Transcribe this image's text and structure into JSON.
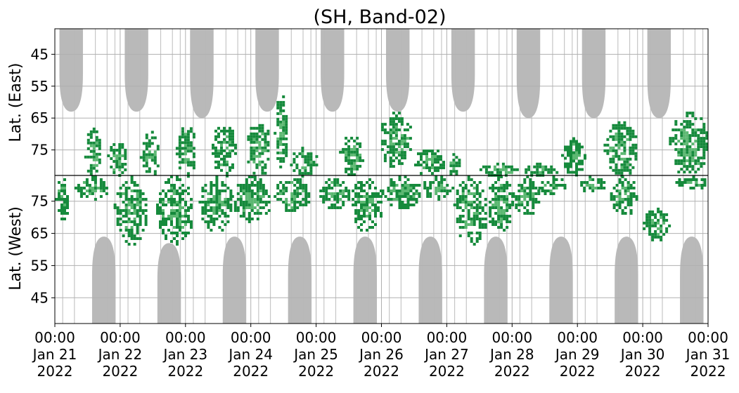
{
  "chart_data": {
    "type": "heatmap",
    "title": "(SH, Band-02)",
    "ylabel_top": "Lat. (East)",
    "ylabel_bottom": "Lat. (West)",
    "grid": true,
    "colors": {
      "gray_mask": "#b9b9b9",
      "green_dark": "#168a3c",
      "green_light": "#5cb872",
      "grid": "#b0b0b0",
      "axis": "#000000"
    },
    "x_ticks": [
      {
        "time": "00:00",
        "date": "Jan 21",
        "year": "2022"
      },
      {
        "time": "00:00",
        "date": "Jan 22",
        "year": "2022"
      },
      {
        "time": "00:00",
        "date": "Jan 23",
        "year": "2022"
      },
      {
        "time": "00:00",
        "date": "Jan 24",
        "year": "2022"
      },
      {
        "time": "00:00",
        "date": "Jan 25",
        "year": "2022"
      },
      {
        "time": "00:00",
        "date": "Jan 26",
        "year": "2022"
      },
      {
        "time": "00:00",
        "date": "Jan 27",
        "year": "2022"
      },
      {
        "time": "00:00",
        "date": "Jan 28",
        "year": "2022"
      },
      {
        "time": "00:00",
        "date": "Jan 29",
        "year": "2022"
      },
      {
        "time": "00:00",
        "date": "Jan 30",
        "year": "2022"
      },
      {
        "time": "00:00",
        "date": "Jan 31",
        "year": "2022"
      }
    ],
    "xlim": [
      "2022-01-21 00:00",
      "2022-01-31 00:00"
    ],
    "y_ticks_top": [
      "45",
      "55",
      "65",
      "75"
    ],
    "y_ticks_bottom": [
      "75",
      "65",
      "55",
      "45"
    ],
    "y_tick_values_top": [
      45,
      55,
      65,
      75
    ],
    "y_tick_values_bottom": [
      75,
      65,
      55,
      45
    ],
    "ylim": [
      37,
      83
    ],
    "gray_regions_east": [
      {
        "day": 0.25,
        "lat_min": 37,
        "lat_max": 63
      },
      {
        "day": 1.25,
        "lat_min": 37,
        "lat_max": 63
      },
      {
        "day": 2.25,
        "lat_min": 37,
        "lat_max": 65
      },
      {
        "day": 3.25,
        "lat_min": 37,
        "lat_max": 63
      },
      {
        "day": 4.25,
        "lat_min": 37,
        "lat_max": 63
      },
      {
        "day": 5.25,
        "lat_min": 37,
        "lat_max": 63
      },
      {
        "day": 6.25,
        "lat_min": 37,
        "lat_max": 63
      },
      {
        "day": 7.25,
        "lat_min": 37,
        "lat_max": 65
      },
      {
        "day": 8.25,
        "lat_min": 37,
        "lat_max": 65
      },
      {
        "day": 9.25,
        "lat_min": 37,
        "lat_max": 65
      }
    ],
    "gray_regions_west": [
      {
        "day": 0.75,
        "lat_min": 37,
        "lat_max": 64
      },
      {
        "day": 1.75,
        "lat_min": 37,
        "lat_max": 62
      },
      {
        "day": 2.75,
        "lat_min": 37,
        "lat_max": 64
      },
      {
        "day": 3.75,
        "lat_min": 37,
        "lat_max": 64
      },
      {
        "day": 4.75,
        "lat_min": 37,
        "lat_max": 64
      },
      {
        "day": 5.75,
        "lat_min": 37,
        "lat_max": 64
      },
      {
        "day": 6.75,
        "lat_min": 37,
        "lat_max": 64
      },
      {
        "day": 7.75,
        "lat_min": 37,
        "lat_max": 64
      },
      {
        "day": 8.75,
        "lat_min": 37,
        "lat_max": 64
      },
      {
        "day": 9.75,
        "lat_min": 37,
        "lat_max": 64
      }
    ],
    "green_patches": [
      {
        "hemisphere": "east",
        "day_start": 0.45,
        "day_end": 0.7,
        "lat_min": 68,
        "lat_max": 83,
        "level": "mixed"
      },
      {
        "hemisphere": "east",
        "day_start": 0.8,
        "day_end": 1.1,
        "lat_min": 72,
        "lat_max": 83,
        "level": "mixed"
      },
      {
        "hemisphere": "east",
        "day_start": 1.3,
        "day_end": 1.6,
        "lat_min": 69,
        "lat_max": 83,
        "level": "mixed"
      },
      {
        "hemisphere": "east",
        "day_start": 1.85,
        "day_end": 2.15,
        "lat_min": 67,
        "lat_max": 83,
        "level": "mixed"
      },
      {
        "hemisphere": "east",
        "day_start": 2.4,
        "day_end": 2.75,
        "lat_min": 66,
        "lat_max": 83,
        "level": "mixed"
      },
      {
        "hemisphere": "east",
        "day_start": 2.9,
        "day_end": 3.3,
        "lat_min": 66,
        "lat_max": 83,
        "level": "mixed"
      },
      {
        "hemisphere": "east",
        "day_start": 3.35,
        "day_end": 3.55,
        "lat_min": 57,
        "lat_max": 80,
        "level": "mixed"
      },
      {
        "hemisphere": "east",
        "day_start": 3.6,
        "day_end": 4.0,
        "lat_min": 74,
        "lat_max": 83,
        "level": "mixed"
      },
      {
        "hemisphere": "east",
        "day_start": 4.35,
        "day_end": 4.7,
        "lat_min": 70,
        "lat_max": 83,
        "level": "mixed"
      },
      {
        "hemisphere": "east",
        "day_start": 4.95,
        "day_end": 5.45,
        "lat_min": 63,
        "lat_max": 80,
        "level": "mixed"
      },
      {
        "hemisphere": "east",
        "day_start": 5.5,
        "day_end": 5.95,
        "lat_min": 74,
        "lat_max": 83,
        "level": "mixed"
      },
      {
        "hemisphere": "east",
        "day_start": 6.0,
        "day_end": 6.2,
        "lat_min": 76,
        "lat_max": 83,
        "level": "mixed"
      },
      {
        "hemisphere": "east",
        "day_start": 6.5,
        "day_end": 7.1,
        "lat_min": 79,
        "lat_max": 83,
        "level": "mixed"
      },
      {
        "hemisphere": "east",
        "day_start": 7.15,
        "day_end": 7.7,
        "lat_min": 79,
        "lat_max": 83,
        "level": "mixed"
      },
      {
        "hemisphere": "east",
        "day_start": 7.75,
        "day_end": 8.1,
        "lat_min": 71,
        "lat_max": 83,
        "level": "mixed"
      },
      {
        "hemisphere": "east",
        "day_start": 8.4,
        "day_end": 8.9,
        "lat_min": 66,
        "lat_max": 83,
        "level": "mixed"
      },
      {
        "hemisphere": "east",
        "day_start": 9.4,
        "day_end": 10.0,
        "lat_min": 63,
        "lat_max": 83,
        "level": "mixed"
      },
      {
        "hemisphere": "west",
        "day_start": 0.0,
        "day_end": 0.2,
        "lat_min": 69,
        "lat_max": 83,
        "level": "mixed"
      },
      {
        "hemisphere": "west",
        "day_start": 0.3,
        "day_end": 0.8,
        "lat_min": 76,
        "lat_max": 83,
        "level": "mixed"
      },
      {
        "hemisphere": "west",
        "day_start": 0.9,
        "day_end": 1.4,
        "lat_min": 62,
        "lat_max": 83,
        "level": "mixed"
      },
      {
        "hemisphere": "west",
        "day_start": 1.55,
        "day_end": 2.1,
        "lat_min": 62,
        "lat_max": 83,
        "level": "mixed"
      },
      {
        "hemisphere": "west",
        "day_start": 2.2,
        "day_end": 2.7,
        "lat_min": 66,
        "lat_max": 83,
        "level": "mixed"
      },
      {
        "hemisphere": "west",
        "day_start": 2.7,
        "day_end": 3.3,
        "lat_min": 69,
        "lat_max": 83,
        "level": "mixed"
      },
      {
        "hemisphere": "west",
        "day_start": 3.35,
        "day_end": 3.9,
        "lat_min": 72,
        "lat_max": 83,
        "level": "mixed"
      },
      {
        "hemisphere": "west",
        "day_start": 4.05,
        "day_end": 4.5,
        "lat_min": 73,
        "lat_max": 83,
        "level": "mixed"
      },
      {
        "hemisphere": "west",
        "day_start": 4.5,
        "day_end": 5.0,
        "lat_min": 66,
        "lat_max": 83,
        "level": "mixed"
      },
      {
        "hemisphere": "west",
        "day_start": 5.0,
        "day_end": 5.6,
        "lat_min": 73,
        "lat_max": 83,
        "level": "mixed"
      },
      {
        "hemisphere": "west",
        "day_start": 5.6,
        "day_end": 6.1,
        "lat_min": 76,
        "lat_max": 83,
        "level": "mixed"
      },
      {
        "hemisphere": "west",
        "day_start": 6.1,
        "day_end": 6.6,
        "lat_min": 62,
        "lat_max": 83,
        "level": "mixed"
      },
      {
        "hemisphere": "west",
        "day_start": 6.6,
        "day_end": 7.0,
        "lat_min": 66,
        "lat_max": 83,
        "level": "mixed"
      },
      {
        "hemisphere": "west",
        "day_start": 7.0,
        "day_end": 7.4,
        "lat_min": 71,
        "lat_max": 83,
        "level": "mixed"
      },
      {
        "hemisphere": "west",
        "day_start": 7.4,
        "day_end": 7.8,
        "lat_min": 77,
        "lat_max": 83,
        "level": "mixed"
      },
      {
        "hemisphere": "west",
        "day_start": 8.0,
        "day_end": 8.4,
        "lat_min": 78,
        "lat_max": 83,
        "level": "mixed"
      },
      {
        "hemisphere": "west",
        "day_start": 8.5,
        "day_end": 8.9,
        "lat_min": 71,
        "lat_max": 83,
        "level": "mixed"
      },
      {
        "hemisphere": "west",
        "day_start": 9.0,
        "day_end": 9.4,
        "lat_min": 63,
        "lat_max": 73,
        "level": "mixed"
      },
      {
        "hemisphere": "west",
        "day_start": 9.5,
        "day_end": 10.0,
        "lat_min": 79,
        "lat_max": 83,
        "level": "mixed"
      }
    ]
  }
}
